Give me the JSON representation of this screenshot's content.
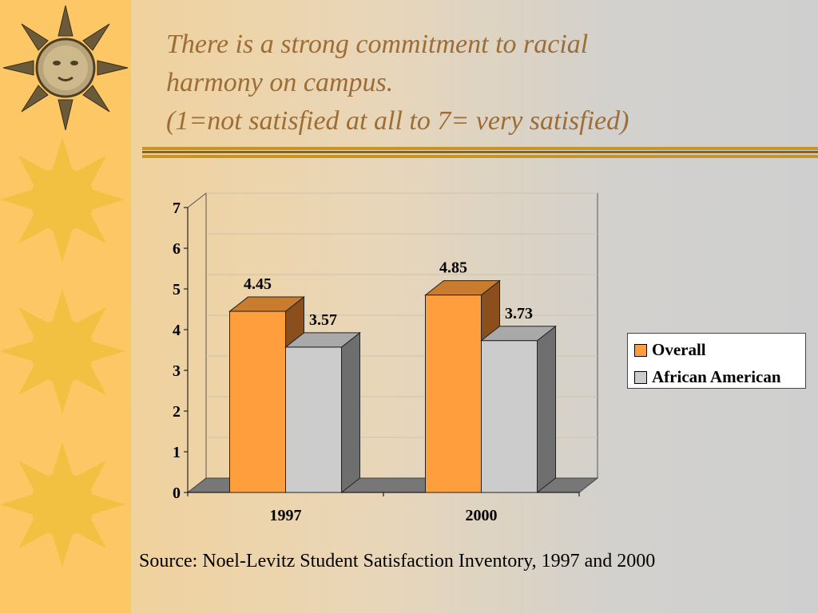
{
  "title_lines": [
    "There is a strong commitment to racial",
    "harmony on campus.",
    "(1=not satisfied at all to 7= very satisfied)"
  ],
  "source": "Source: Noel-Levitz Student Satisfaction Inventory, 1997 and 2000",
  "colors": {
    "overall_front": "#ff9e3d",
    "overall_top": "#c97b2e",
    "overall_side": "#8a4f1c",
    "aa_front": "#cccccc",
    "aa_top": "#a9a9a9",
    "aa_side": "#6e6e6e",
    "title": "#9d6d35",
    "sidebar": "#fdc765",
    "sun": "#f3c141"
  },
  "chart_data": {
    "type": "bar",
    "categories": [
      "1997",
      "2000"
    ],
    "series": [
      {
        "name": "Overall",
        "values": [
          4.45,
          4.85
        ]
      },
      {
        "name": "African American",
        "values": [
          3.57,
          3.73
        ]
      }
    ],
    "data_labels": [
      [
        "4.45",
        "4.85"
      ],
      [
        "3.57",
        "3.73"
      ]
    ],
    "ylim": [
      0,
      7
    ],
    "yticks": [
      "0",
      "1",
      "2",
      "3",
      "4",
      "5",
      "6",
      "7"
    ],
    "grid": true,
    "legend_position": "right",
    "three_d": true
  }
}
